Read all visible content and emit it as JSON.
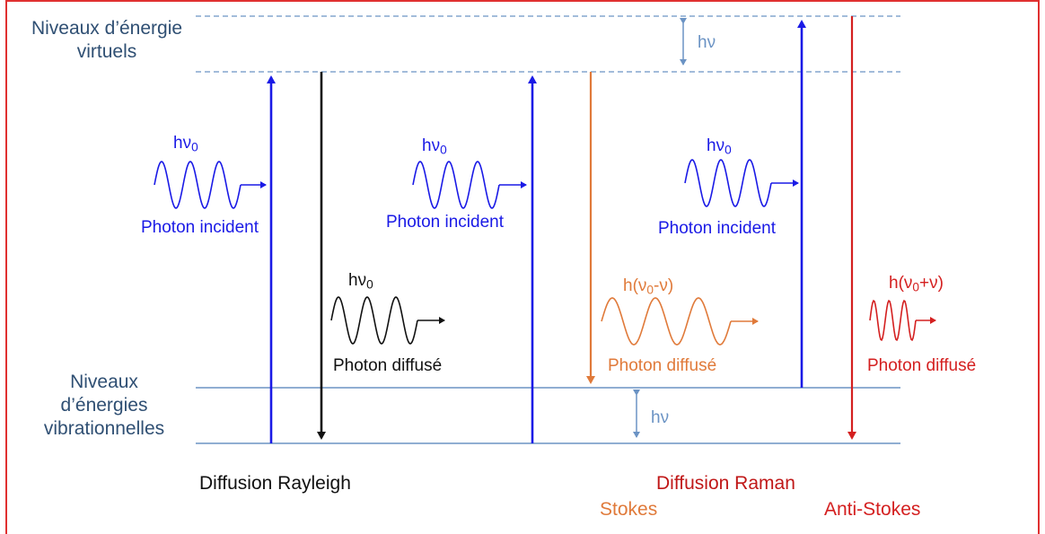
{
  "levels": {
    "virtual": "Niveaux d’énergie virtuels",
    "virtual_line1": "Niveaux d’énergie",
    "virtual_line2": "virtuels",
    "vibrational": "Niveaux d’énergies vibrationnelles",
    "vibrational_line1": "Niveaux",
    "vibrational_line2": "d’énergies",
    "vibrational_line3": "vibrationnelles",
    "gap_top": "hν",
    "gap_bottom": "hν"
  },
  "photons": {
    "incident_energy": {
      "main": "hν",
      "sub": "0"
    },
    "incident_label": "Photon incident",
    "rayleigh_energy": {
      "main": "hν",
      "sub": "0"
    },
    "scattered_label": "Photon diffusé",
    "stokes_energy": {
      "pre": "h(ν",
      "sub": "0",
      "post": "-ν)"
    },
    "antistokes_energy": {
      "pre": "h(ν",
      "sub": "0",
      "post": "+ν)"
    }
  },
  "processes": {
    "rayleigh": {
      "word1": "Diffusion",
      "word2": "Rayleigh"
    },
    "raman": {
      "word1": "Diffusion",
      "word2": "Raman"
    },
    "stokes": "Stokes",
    "antistokes": "Anti-Stokes"
  },
  "colors": {
    "frame": "#e03030",
    "level_line": "#6b93c4",
    "level_text": "#2f4f73",
    "incident": "#1a1ae6",
    "rayleigh": "#111111",
    "stokes": "#e07a3a",
    "antistokes": "#d42020",
    "raman_title": "#c01818"
  }
}
